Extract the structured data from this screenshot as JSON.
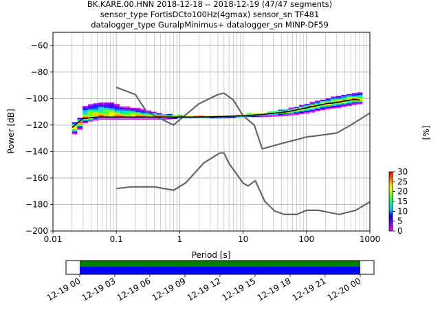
{
  "title_lines": [
    "BK.KARE.00.HNN   2018-12-18 -- 2018-12-19  (47/47 segments)",
    "sensor_type FortisDCto100Hz(4gmax) sensor_sn TF481",
    "datalogger_type GuralpMinimus+ datalogger_sn MINP-DF59"
  ],
  "chart_data": [
    {
      "type": "heatmap",
      "name": "ppsd",
      "xlabel": "Period [s]",
      "ylabel": "Power [dB]",
      "xscale": "log",
      "xlim": [
        0.01,
        1000
      ],
      "ylim": [
        -200,
        -50
      ],
      "x_ticks": [
        {
          "value": 0.01,
          "label": "0.01"
        },
        {
          "value": 0.1,
          "label": "0.1"
        },
        {
          "value": 1,
          "label": "1"
        },
        {
          "value": 10,
          "label": "10"
        },
        {
          "value": 100,
          "label": "100"
        },
        {
          "value": 1000,
          "label": "1000"
        }
      ],
      "y_ticks": [
        {
          "value": -200,
          "label": "−200"
        },
        {
          "value": -180,
          "label": "−180"
        },
        {
          "value": -160,
          "label": "−160"
        },
        {
          "value": -140,
          "label": "−140"
        },
        {
          "value": -120,
          "label": "−120"
        },
        {
          "value": -100,
          "label": "−100"
        },
        {
          "value": -80,
          "label": "−80"
        },
        {
          "value": -60,
          "label": "−60"
        }
      ],
      "grid": true,
      "mode_curve": {
        "x": [
          0.02,
          0.025,
          0.03,
          0.05,
          0.08,
          0.1,
          0.2,
          0.3,
          0.5,
          1,
          2,
          5,
          10,
          20,
          50,
          100,
          200,
          300,
          500,
          700
        ],
        "y": [
          -122,
          -118,
          -115,
          -114,
          -114,
          -114,
          -114,
          -114,
          -114,
          -114,
          -114,
          -113.5,
          -113,
          -112,
          -110,
          -107,
          -104,
          -103,
          -101,
          -101
        ]
      },
      "density_band": {
        "x": [
          0.02,
          0.025,
          0.03,
          0.05,
          0.08,
          0.1,
          0.2,
          0.3,
          0.5,
          1,
          2,
          5,
          10,
          20,
          50,
          100,
          200,
          300,
          500,
          700
        ],
        "upper": [
          -118,
          -114,
          -105,
          -103,
          -103,
          -106,
          -108,
          -110,
          -112,
          -113,
          -113,
          -113,
          -112,
          -111,
          -108,
          -104,
          -100,
          -98,
          -96,
          -96
        ],
        "lower": [
          -127,
          -123,
          -118,
          -116,
          -116,
          -116,
          -116,
          -116,
          -116,
          -115,
          -115,
          -115,
          -114,
          -114,
          -113,
          -111,
          -108,
          -107,
          -105,
          -104
        ]
      },
      "noise_models": [
        {
          "x": [
            0.1,
            0.2,
            0.3,
            0.8,
            1,
            2,
            4,
            5,
            7,
            10,
            15,
            20,
            40,
            70,
            100,
            150,
            300,
            500,
            1000
          ],
          "y": [
            -91.5,
            -97,
            -110,
            -120,
            -116,
            -104,
            -97,
            -96,
            -101,
            -113,
            -120,
            -138,
            -134,
            -131,
            -129,
            -128,
            -126,
            -120,
            -111
          ]
        },
        {
          "x": [
            0.1,
            0.17,
            0.4,
            0.8,
            1.24,
            2.4,
            4.3,
            5,
            6,
            10,
            12,
            15.6,
            21.9,
            31.6,
            45,
            70,
            101,
            154,
            328,
            600,
            1000
          ],
          "y": [
            -168,
            -166.7,
            -166.7,
            -169.2,
            -163.7,
            -148.6,
            -141.1,
            -141.1,
            -149,
            -163.8,
            -166,
            -162,
            -177.5,
            -185,
            -187.5,
            -187.5,
            -184.4,
            -184.4,
            -187.5,
            -184.4,
            -178
          ]
        }
      ]
    },
    {
      "type": "heatmap",
      "name": "colorbar",
      "ylabel": "[%]",
      "ylim": [
        0,
        30
      ],
      "ticks": [
        {
          "value": 0,
          "label": "0"
        },
        {
          "value": 5,
          "label": "5"
        },
        {
          "value": 10,
          "label": "10"
        },
        {
          "value": 15,
          "label": "15"
        },
        {
          "value": 20,
          "label": "20"
        },
        {
          "value": 25,
          "label": "25"
        },
        {
          "value": 30,
          "label": "30"
        }
      ],
      "colors": [
        "#ff00ff",
        "#8000ff",
        "#0000ff",
        "#00c8ff",
        "#00ff80",
        "#80ff00",
        "#ffff00",
        "#ff8000",
        "#ff0000"
      ]
    },
    {
      "type": "bar",
      "name": "data-availability",
      "tick_labels": [
        "12-19 00",
        "12-19 03",
        "12-19 06",
        "12-19 09",
        "12-19 12",
        "12-19 15",
        "12-19 18",
        "12-19 21",
        "12-20 00"
      ],
      "coverage_start": "12-19 00",
      "coverage_end": "12-20 00",
      "colors": {
        "upper": "#008000",
        "lower": "#0000ff"
      }
    }
  ]
}
